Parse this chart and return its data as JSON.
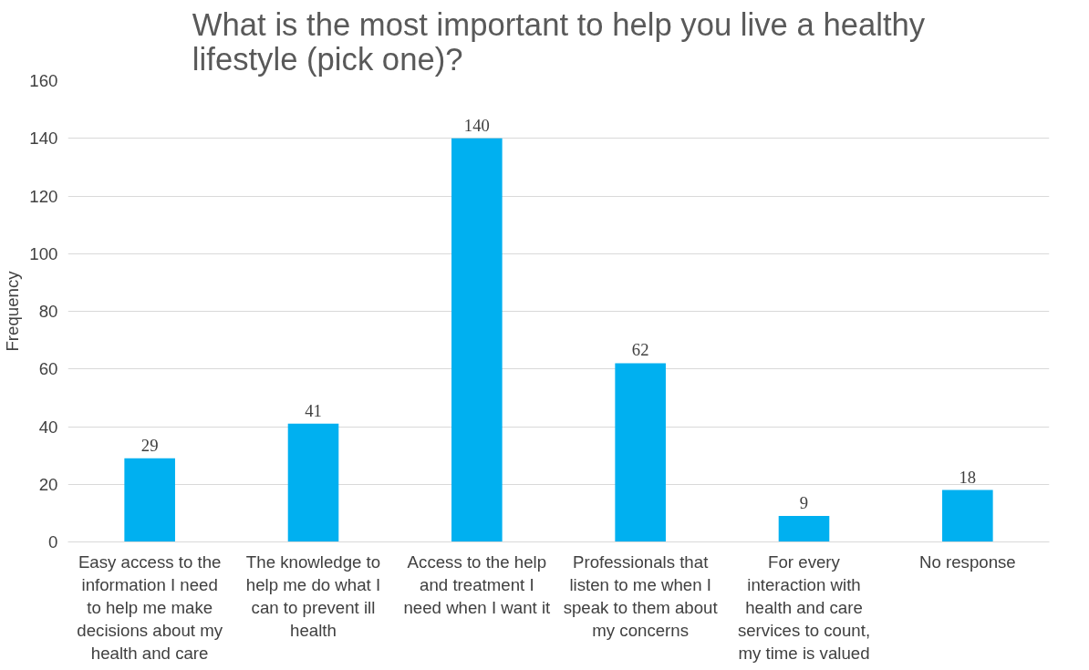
{
  "chart_data": {
    "type": "bar",
    "title": "What is the most important to help you live a healthy lifestyle (pick one)?",
    "ylabel": "Frequency",
    "categories": [
      "Easy access to the information I need to help me make decisions about my health and care",
      "The knowledge to help me do what I can to prevent ill health",
      "Access to the help and treatment I need when I want it",
      "Professionals that listen to me when I speak to them about my concerns",
      "For every interaction with health and care services to count, my time is valued",
      "No response"
    ],
    "values": [
      29,
      41,
      140,
      62,
      9,
      18
    ],
    "color": "#00b0f0",
    "ylim": [
      0,
      160
    ],
    "yticks": [
      0,
      20,
      40,
      60,
      80,
      100,
      120,
      140,
      160
    ],
    "grid": "y",
    "data_labels": true
  }
}
